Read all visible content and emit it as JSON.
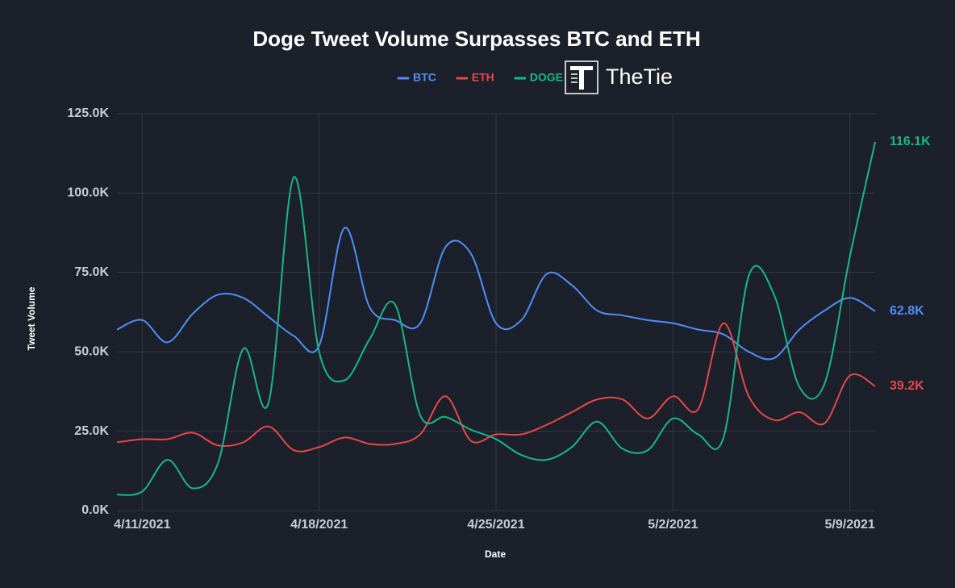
{
  "chart_data": {
    "type": "line",
    "title": "Doge Tweet Volume Surpasses BTC and ETH",
    "brand": "TheTie",
    "x_label": "Date",
    "y_label": "Tweet Volume",
    "x": [
      "4/10/2021",
      "4/11/2021",
      "4/12/2021",
      "4/13/2021",
      "4/14/2021",
      "4/15/2021",
      "4/16/2021",
      "4/17/2021",
      "4/18/2021",
      "4/19/2021",
      "4/20/2021",
      "4/21/2021",
      "4/22/2021",
      "4/23/2021",
      "4/24/2021",
      "4/25/2021",
      "4/26/2021",
      "4/27/2021",
      "4/28/2021",
      "4/29/2021",
      "4/30/2021",
      "5/1/2021",
      "5/2/2021",
      "5/3/2021",
      "5/4/2021",
      "5/5/2021",
      "5/6/2021",
      "5/7/2021",
      "5/8/2021",
      "5/9/2021",
      "5/10/2021"
    ],
    "xlim": [
      "4/10/2021",
      "5/10/2021"
    ],
    "xticks": [
      "4/11/2021",
      "4/18/2021",
      "4/25/2021",
      "5/2/2021",
      "5/9/2021"
    ],
    "ylim": [
      0,
      125000
    ],
    "yticks": [
      {
        "value": 0,
        "label": "0.0K"
      },
      {
        "value": 25000,
        "label": "25.0K"
      },
      {
        "value": 50000,
        "label": "50.0K"
      },
      {
        "value": 75000,
        "label": "75.0K"
      },
      {
        "value": 100000,
        "label": "100.0K"
      },
      {
        "value": 125000,
        "label": "125.0K"
      }
    ],
    "grid": true,
    "series": [
      {
        "name": "BTC",
        "color": "#4f8ef7",
        "values": [
          57000,
          60000,
          53000,
          62000,
          68000,
          67000,
          61000,
          55000,
          52000,
          89000,
          64000,
          60000,
          59000,
          83000,
          81000,
          59000,
          60000,
          74500,
          71000,
          63000,
          61500,
          60000,
          59000,
          57000,
          55500,
          50000,
          48000,
          57000,
          63000,
          67000,
          62800
        ],
        "value_labels": [
          null,
          null,
          null,
          null,
          null,
          null,
          null,
          null,
          null,
          null,
          null,
          null,
          null,
          null,
          null,
          null,
          null,
          null,
          null,
          null,
          null,
          null,
          null,
          null,
          null,
          null,
          null,
          null,
          null,
          null,
          "62.8K"
        ]
      },
      {
        "name": "ETH",
        "color": "#e84749",
        "values": [
          21500,
          22500,
          22500,
          24500,
          20500,
          21500,
          26500,
          19000,
          20000,
          23000,
          21000,
          21000,
          24000,
          36000,
          22000,
          24000,
          24000,
          27000,
          31000,
          35000,
          35000,
          29000,
          36000,
          32000,
          59000,
          36000,
          28500,
          31000,
          27500,
          42500,
          39200
        ],
        "value_labels": [
          null,
          null,
          null,
          null,
          null,
          null,
          null,
          null,
          null,
          null,
          null,
          null,
          null,
          null,
          null,
          null,
          null,
          null,
          null,
          null,
          null,
          null,
          null,
          null,
          null,
          null,
          null,
          null,
          null,
          null,
          "39.2K"
        ]
      },
      {
        "name": "DOGE",
        "color": "#17b887",
        "values": [
          5000,
          6000,
          16000,
          7000,
          15000,
          51000,
          34000,
          105000,
          50000,
          41000,
          54000,
          65000,
          30000,
          29500,
          25500,
          22500,
          17500,
          16000,
          20000,
          28000,
          19500,
          19000,
          29000,
          24000,
          23000,
          74000,
          68000,
          39000,
          40000,
          80000,
          116100
        ],
        "value_labels": [
          null,
          null,
          null,
          null,
          null,
          null,
          null,
          null,
          null,
          null,
          null,
          null,
          null,
          null,
          null,
          null,
          null,
          null,
          null,
          null,
          null,
          null,
          null,
          null,
          null,
          null,
          null,
          null,
          null,
          null,
          "116.1K"
        ]
      }
    ]
  }
}
